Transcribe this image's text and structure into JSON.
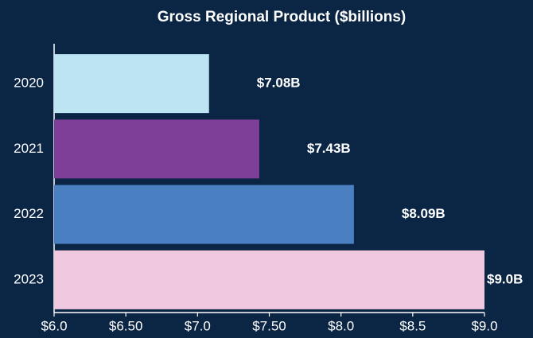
{
  "chart_data": {
    "type": "hbar",
    "title": "Gross Regional Product ($billions)",
    "categories": [
      "2020",
      "2021",
      "2022",
      "2023"
    ],
    "values": [
      7.08,
      7.43,
      8.09,
      9.0
    ],
    "value_labels": [
      "$7.08B",
      "$7.43B",
      "$8.09B",
      "$9.0B"
    ],
    "colors": [
      "#bde4f2",
      "#7e3f98",
      "#4a7fc1",
      "#f0c9e0"
    ],
    "xlim": [
      6.0,
      9.0
    ],
    "xticks": [
      {
        "value": 6.0,
        "label": "$6.0"
      },
      {
        "value": 6.5,
        "label": "$6.50"
      },
      {
        "value": 7.0,
        "label": "$7.0"
      },
      {
        "value": 7.5,
        "label": "$7.50"
      },
      {
        "value": 8.0,
        "label": "$8.0"
      },
      {
        "value": 8.5,
        "label": "$8.5"
      },
      {
        "value": 9.0,
        "label": "$9.0"
      }
    ]
  }
}
